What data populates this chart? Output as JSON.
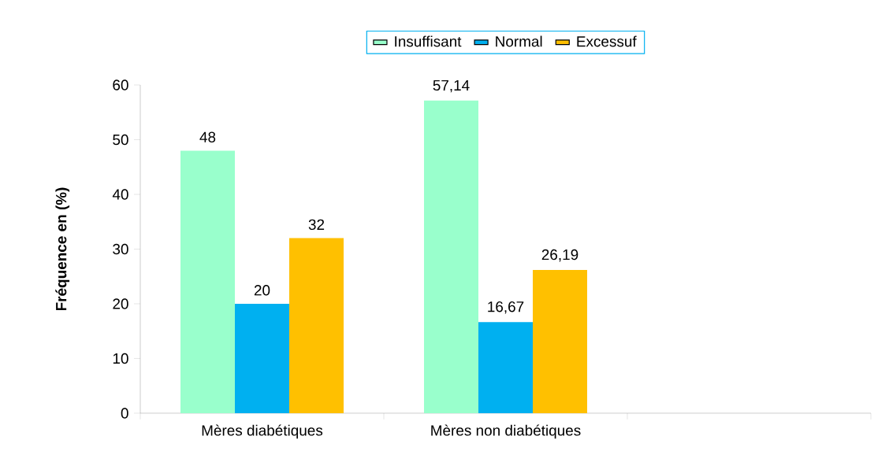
{
  "chart_data": {
    "type": "bar",
    "ylabel": "Fréquence en (%)",
    "categories": [
      "Mères diabétiques",
      "Mères non diabétiques",
      null
    ],
    "series": [
      {
        "name": "Insuffisant",
        "color": "#99ffcc",
        "values": [
          48,
          57.14,
          null
        ],
        "value_labels": [
          "48",
          "57,14",
          null
        ]
      },
      {
        "name": "Normal",
        "color": "#00b0f0",
        "values": [
          20,
          16.67,
          null
        ],
        "value_labels": [
          "20",
          "16,67",
          null
        ]
      },
      {
        "name": "Excessuf",
        "color": "#ffc000",
        "values": [
          32,
          26.19,
          null
        ],
        "value_labels": [
          "32",
          "26,19",
          null
        ]
      }
    ],
    "ylim": [
      0,
      60
    ],
    "yticks": [
      0,
      10,
      20,
      30,
      40,
      50,
      60
    ],
    "legend": "top"
  }
}
